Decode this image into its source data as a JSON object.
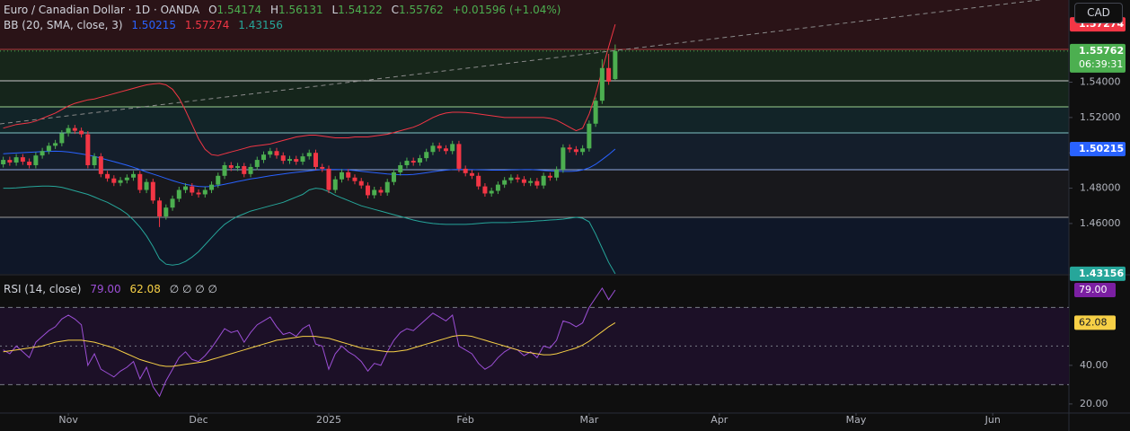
{
  "header": {
    "title": "Euro / Canadian Dollar · 1D · OANDA",
    "fields": [
      "O",
      "H",
      "L",
      "C"
    ],
    "change": "+0.01596 (+1.04%)",
    "bb_title": "BB (20, SMA, close, 3)",
    "rsi_title": "RSI (14, close)",
    "rsi_extra": "∅ ∅ ∅ ∅"
  },
  "currency": "CAD",
  "chart_data": [
    {
      "type": "candlestick",
      "up_color": "#4caf50",
      "down_color": "#f23645",
      "countdown": "06:39:31",
      "xlim": [
        -0.5,
        163.7
      ],
      "xticks": [
        {
          "value": 10,
          "label": "Nov"
        },
        {
          "value": 30,
          "label": "Dec"
        },
        {
          "value": 50,
          "label": "2025"
        },
        {
          "value": 71,
          "label": "Feb"
        },
        {
          "value": 90,
          "label": "Mar"
        },
        {
          "value": 110,
          "label": "Apr"
        },
        {
          "value": 131,
          "label": "May"
        },
        {
          "value": 152,
          "label": "Jun"
        }
      ],
      "ylim": [
        1.4315,
        1.5865
      ],
      "yticks": [
        {
          "value": 1.54,
          "label": "1.54000"
        },
        {
          "value": 1.52,
          "label": "1.52000"
        },
        {
          "value": 1.5,
          "label": "1.50000"
        },
        {
          "value": 1.48,
          "label": "1.48000"
        },
        {
          "value": 1.46,
          "label": "1.46000"
        }
      ],
      "open": [
        1.4935,
        1.496,
        1.4945,
        1.4975,
        1.495,
        1.493,
        1.4985,
        1.501,
        1.504,
        1.5055,
        1.511,
        1.514,
        1.5125,
        1.5105,
        1.493,
        1.498,
        1.488,
        1.4855,
        1.483,
        1.4845,
        1.486,
        1.488,
        1.479,
        1.4835,
        1.473,
        1.464,
        1.469,
        1.474,
        1.479,
        1.481,
        1.4775,
        1.4765,
        1.479,
        1.482,
        1.487,
        1.493,
        1.4915,
        1.4925,
        1.488,
        1.492,
        1.496,
        1.499,
        1.501,
        1.4985,
        1.4955,
        1.4965,
        1.495,
        1.498,
        1.5,
        1.492,
        1.491,
        1.479,
        1.485,
        1.489,
        1.486,
        1.484,
        1.4815,
        1.476,
        1.479,
        1.4775,
        1.4835,
        1.489,
        1.493,
        1.4955,
        1.4945,
        1.497,
        1.5005,
        1.504,
        1.5025,
        1.501,
        1.505,
        1.491,
        1.4885,
        1.487,
        1.481,
        1.477,
        1.4785,
        1.482,
        1.4845,
        1.486,
        1.485,
        1.483,
        1.484,
        1.4815,
        1.487,
        1.486,
        1.4905,
        1.503,
        1.502,
        1.5005,
        1.5025,
        1.5165,
        1.5295,
        1.548,
        1.54174
      ],
      "high": [
        1.4978,
        1.4978,
        1.4993,
        1.4993,
        1.4968,
        1.5003,
        1.5028,
        1.5058,
        1.5073,
        1.5128,
        1.5158,
        1.5158,
        1.5143,
        1.5123,
        1.4998,
        1.4998,
        1.4898,
        1.4873,
        1.4863,
        1.4878,
        1.4898,
        1.4898,
        1.4853,
        1.4853,
        1.4748,
        1.4708,
        1.4758,
        1.4808,
        1.4828,
        1.4828,
        1.4793,
        1.4808,
        1.4838,
        1.4888,
        1.4948,
        1.4948,
        1.4943,
        1.4943,
        1.4938,
        1.4978,
        1.5008,
        1.5028,
        1.5028,
        1.5003,
        1.4983,
        1.4983,
        1.4998,
        1.5018,
        1.5018,
        1.4938,
        1.4928,
        1.4868,
        1.4908,
        1.4908,
        1.4878,
        1.4858,
        1.4833,
        1.4808,
        1.4808,
        1.4853,
        1.4908,
        1.4948,
        1.4973,
        1.4973,
        1.4988,
        1.5023,
        1.5058,
        1.5058,
        1.5043,
        1.5068,
        1.5068,
        1.4928,
        1.4903,
        1.4888,
        1.4828,
        1.4803,
        1.4838,
        1.4863,
        1.4878,
        1.4878,
        1.4868,
        1.4858,
        1.4858,
        1.4888,
        1.4888,
        1.4923,
        1.5048,
        1.5048,
        1.5038,
        1.5043,
        1.5183,
        1.5313,
        1.553,
        1.556,
        1.56131
      ],
      "low": [
        1.4917,
        1.4927,
        1.4927,
        1.4932,
        1.4912,
        1.4912,
        1.4967,
        1.4992,
        1.5022,
        1.5037,
        1.5092,
        1.5107,
        1.5087,
        1.4912,
        1.4912,
        1.4862,
        1.4837,
        1.4812,
        1.4812,
        1.4827,
        1.4842,
        1.4772,
        1.4772,
        1.4712,
        1.458,
        1.4622,
        1.4672,
        1.4722,
        1.4772,
        1.4757,
        1.4747,
        1.4747,
        1.4772,
        1.4802,
        1.4852,
        1.4897,
        1.4897,
        1.4862,
        1.4862,
        1.4902,
        1.4942,
        1.4972,
        1.4967,
        1.4937,
        1.4937,
        1.4932,
        1.4932,
        1.4962,
        1.4902,
        1.4892,
        1.4772,
        1.4772,
        1.4832,
        1.4842,
        1.4822,
        1.4797,
        1.4742,
        1.4742,
        1.4757,
        1.4757,
        1.4817,
        1.4872,
        1.4912,
        1.4927,
        1.4927,
        1.4952,
        1.4987,
        1.5007,
        1.4992,
        1.4992,
        1.4892,
        1.4867,
        1.4852,
        1.4792,
        1.4752,
        1.4752,
        1.4767,
        1.4802,
        1.4827,
        1.4832,
        1.4812,
        1.4812,
        1.4797,
        1.4797,
        1.4842,
        1.4842,
        1.4887,
        1.5002,
        1.4987,
        1.4987,
        1.5007,
        1.5147,
        1.5277,
        1.5385,
        1.54122
      ],
      "close": [
        1.496,
        1.4945,
        1.4975,
        1.495,
        1.493,
        1.4985,
        1.501,
        1.504,
        1.5055,
        1.511,
        1.514,
        1.5125,
        1.5105,
        1.493,
        1.498,
        1.488,
        1.4855,
        1.483,
        1.4845,
        1.486,
        1.488,
        1.479,
        1.4835,
        1.473,
        1.464,
        1.469,
        1.474,
        1.479,
        1.481,
        1.4775,
        1.4765,
        1.479,
        1.482,
        1.487,
        1.493,
        1.4915,
        1.4925,
        1.488,
        1.492,
        1.496,
        1.499,
        1.501,
        1.4985,
        1.4955,
        1.4965,
        1.495,
        1.498,
        1.5,
        1.492,
        1.491,
        1.479,
        1.485,
        1.489,
        1.486,
        1.484,
        1.4815,
        1.476,
        1.479,
        1.4775,
        1.4835,
        1.489,
        1.493,
        1.4955,
        1.4945,
        1.497,
        1.5005,
        1.504,
        1.5025,
        1.501,
        1.505,
        1.491,
        1.4885,
        1.487,
        1.481,
        1.477,
        1.4785,
        1.482,
        1.4845,
        1.486,
        1.485,
        1.483,
        1.484,
        1.4815,
        1.487,
        1.486,
        1.4905,
        1.503,
        1.502,
        1.5005,
        1.5025,
        1.5165,
        1.5295,
        1.548,
        1.5403,
        1.55762
      ],
      "series": [
        {
          "color": "#2962ff",
          "values": [
            1.4995,
            1.4997,
            1.4999,
            1.5001,
            1.5003,
            1.5005,
            1.5007,
            1.5008,
            1.5009,
            1.5008,
            1.5005,
            1.5,
            1.4994,
            1.4988,
            1.498,
            1.497,
            1.496,
            1.495,
            1.494,
            1.493,
            1.4918,
            1.4905,
            1.4892,
            1.488,
            1.4868,
            1.4855,
            1.4843,
            1.4832,
            1.4822,
            1.4815,
            1.481,
            1.4808,
            1.481,
            1.4815,
            1.4822,
            1.483,
            1.4838,
            1.4845,
            1.4852,
            1.4858,
            1.4864,
            1.487,
            1.4875,
            1.488,
            1.4885,
            1.489,
            1.4894,
            1.4898,
            1.4902,
            1.4905,
            1.4906,
            1.4906,
            1.4905,
            1.4903,
            1.49,
            1.4896,
            1.4892,
            1.4888,
            1.4884,
            1.488,
            1.4878,
            1.4876,
            1.4876,
            1.4878,
            1.4882,
            1.4887,
            1.4893,
            1.4898,
            1.4902,
            1.4905,
            1.4906,
            1.4906,
            1.4905,
            1.4904,
            1.4903,
            1.4902,
            1.4902,
            1.4902,
            1.4903,
            1.4904,
            1.4905,
            1.4905,
            1.4903,
            1.49,
            1.4898,
            1.4896,
            1.4895,
            1.4895,
            1.4897,
            1.4903,
            1.4915,
            1.4935,
            1.4962,
            1.499,
            1.50215
          ]
        },
        {
          "color": "#f23645",
          "values": [
            1.514,
            1.515,
            1.516,
            1.5165,
            1.517,
            1.518,
            1.5195,
            1.521,
            1.5225,
            1.5245,
            1.5265,
            1.528,
            1.529,
            1.53,
            1.5305,
            1.5315,
            1.5325,
            1.5335,
            1.5345,
            1.5355,
            1.5365,
            1.5375,
            1.5385,
            1.539,
            1.5393,
            1.5385,
            1.536,
            1.531,
            1.524,
            1.516,
            1.508,
            1.502,
            1.499,
            1.4985,
            1.4995,
            1.5005,
            1.5015,
            1.5025,
            1.5035,
            1.504,
            1.5045,
            1.505,
            1.506,
            1.507,
            1.508,
            1.509,
            1.5095,
            1.51,
            1.51,
            1.5095,
            1.509,
            1.5085,
            1.5085,
            1.5085,
            1.509,
            1.509,
            1.509,
            1.5095,
            1.51,
            1.5105,
            1.5115,
            1.5125,
            1.5135,
            1.5145,
            1.516,
            1.518,
            1.52,
            1.5215,
            1.5225,
            1.523,
            1.523,
            1.5228,
            1.5225,
            1.522,
            1.5215,
            1.521,
            1.5205,
            1.52,
            1.52,
            1.52,
            1.52,
            1.52,
            1.52,
            1.52,
            1.5195,
            1.5185,
            1.5165,
            1.5145,
            1.5125,
            1.514,
            1.522,
            1.533,
            1.547,
            1.56,
            1.57274
          ]
        },
        {
          "color": "#26a69a",
          "values": [
            1.48,
            1.48,
            1.4802,
            1.4805,
            1.4808,
            1.481,
            1.4812,
            1.4812,
            1.481,
            1.4805,
            1.4795,
            1.4785,
            1.4775,
            1.4765,
            1.475,
            1.4735,
            1.472,
            1.47,
            1.468,
            1.4655,
            1.462,
            1.458,
            1.453,
            1.447,
            1.44,
            1.437,
            1.4365,
            1.437,
            1.4385,
            1.441,
            1.444,
            1.448,
            1.452,
            1.456,
            1.4595,
            1.462,
            1.464,
            1.4655,
            1.467,
            1.468,
            1.469,
            1.47,
            1.471,
            1.472,
            1.4735,
            1.475,
            1.4765,
            1.479,
            1.48,
            1.4795,
            1.478,
            1.476,
            1.4745,
            1.473,
            1.4715,
            1.47,
            1.469,
            1.468,
            1.467,
            1.466,
            1.465,
            1.464,
            1.463,
            1.462,
            1.4612,
            1.4605,
            1.46,
            1.4597,
            1.4595,
            1.4595,
            1.4595,
            1.4595,
            1.4597,
            1.46,
            1.4603,
            1.4605,
            1.4605,
            1.4605,
            1.4606,
            1.4608,
            1.461,
            1.4612,
            1.4615,
            1.4617,
            1.462,
            1.4622,
            1.4625,
            1.463,
            1.4635,
            1.463,
            1.461,
            1.454,
            1.446,
            1.438,
            1.43156
          ]
        }
      ]
    },
    {
      "type": "line",
      "ylim": [
        15.3,
        86
      ],
      "yticks": [
        {
          "value": 40,
          "label": "40.00"
        },
        {
          "value": 20,
          "label": "20.00"
        }
      ],
      "levels": [
        70,
        50,
        30
      ],
      "series": [
        {
          "color": "#9c4fd6",
          "last_label": "79.00",
          "values": [
            48,
            46,
            50,
            47,
            44,
            52,
            55,
            58,
            60,
            64,
            66,
            64,
            61,
            40,
            46,
            38,
            36,
            34,
            37,
            39,
            42,
            33,
            39,
            29,
            24,
            32,
            38,
            44,
            47,
            43,
            42,
            45,
            49,
            54,
            59,
            57,
            58,
            52,
            57,
            61,
            63,
            65,
            60,
            56,
            57,
            55,
            59,
            61,
            51,
            50,
            38,
            46,
            50,
            47,
            45,
            42,
            37,
            41,
            40,
            47,
            53,
            57,
            59,
            58,
            61,
            64,
            67,
            65,
            63,
            66,
            50,
            48,
            46,
            41,
            38,
            40,
            44,
            47,
            49,
            48,
            45,
            47,
            44,
            50,
            49,
            53,
            63,
            62,
            60,
            62,
            70,
            75,
            80,
            74,
            79
          ]
        },
        {
          "color": "#f7d046",
          "values": [
            47,
            47.5,
            48,
            48.5,
            49,
            49.5,
            50,
            51,
            52,
            52.5,
            53,
            53,
            53,
            52.5,
            52,
            51,
            50,
            49,
            47.5,
            46,
            44.5,
            43,
            42,
            41,
            40,
            39.5,
            39.5,
            40,
            40.5,
            41,
            41.5,
            42,
            43,
            44,
            45,
            46,
            47,
            48,
            49,
            50,
            51,
            52,
            53,
            53.5,
            54,
            54.5,
            55,
            55,
            55,
            54.5,
            54,
            53,
            52,
            51,
            50,
            49,
            48.5,
            48,
            47.5,
            47,
            47,
            47.5,
            48,
            49,
            50,
            51,
            52,
            53,
            54,
            55,
            55.5,
            55.5,
            55,
            54,
            53,
            52,
            51,
            50,
            49,
            48,
            47,
            46.5,
            46,
            45.5,
            45.5,
            46,
            47,
            48,
            49,
            50.5,
            52.5,
            55,
            57.5,
            60,
            62.08
          ]
        }
      ]
    }
  ]
}
